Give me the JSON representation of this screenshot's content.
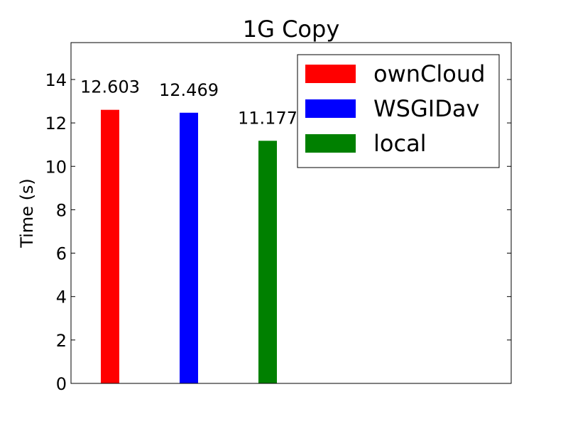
{
  "chart_data": {
    "type": "bar",
    "title": "1G Copy",
    "xlabel": "",
    "ylabel": "Time (s)",
    "ylim": [
      0,
      15.7
    ],
    "yticks": [
      0,
      2,
      4,
      6,
      8,
      10,
      12,
      14
    ],
    "grid": false,
    "legend_position": "top-right",
    "series": [
      {
        "name": "ownCloud",
        "value": 12.603,
        "label": "12.603",
        "color": "#ff0000"
      },
      {
        "name": "WSGIDav",
        "value": 12.469,
        "label": "12.469",
        "color": "#0000ff"
      },
      {
        "name": "local",
        "value": 11.177,
        "label": "11.177",
        "color": "#008000"
      }
    ]
  }
}
